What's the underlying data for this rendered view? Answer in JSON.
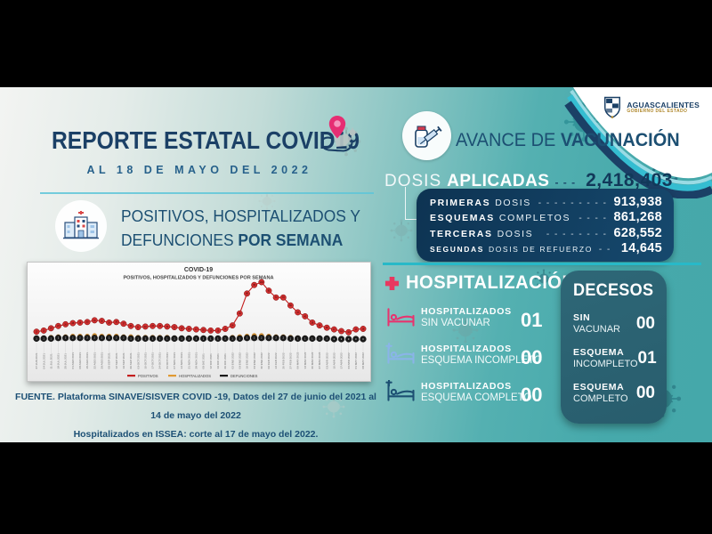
{
  "colors": {
    "background_bars": "#000000",
    "teal_background": "#46a9ab",
    "navy": "#1b4066",
    "navy_panel": "#0d3352",
    "cyan_divider": "#28b9c8",
    "pink_accent": "#e62e73",
    "decesos_panel": "#2b6273",
    "series_red": "#c41f1f",
    "series_orange": "#e09a33",
    "series_black": "#1a1a1a"
  },
  "brand": {
    "name": "AGUASCALIENTES",
    "tagline": "GOBIERNO DEL ESTADO"
  },
  "report": {
    "title": "REPORTE ESTATAL COVID19",
    "subtitle": "AL 18 DE MAYO DEL 2022",
    "section_line1": "POSITIVOS, HOSPITALIZADOS Y",
    "section_line2_regular": "DEFUNCIONES ",
    "section_line2_bold": "POR SEMANA"
  },
  "fuente": {
    "line1": "FUENTE. Plataforma SINAVE/SISVER COVID -19, Datos del 27 de junio del 2021 al 14 de mayo del 2022",
    "line2": "Hospitalizados en ISSEA: corte al 17 de mayo del 2022."
  },
  "vacunacion": {
    "title_regular": "AVANCE DE ",
    "title_bold": "VACUNACIÓN",
    "dosis_regular": "DOSIS",
    "dosis_bold": "APLICADAS",
    "dosis_dashes": "- - - - - - -",
    "dosis_total": "2,418,403",
    "rows": [
      {
        "label_bold": "PRIMERAS",
        "label_rest": "DOSIS",
        "dashes": "- - - - - - - - -",
        "value": "913,938"
      },
      {
        "label_bold": "ESQUEMAS",
        "label_rest": "COMPLETOS",
        "dashes": "- - - -",
        "value": "861,268"
      },
      {
        "label_bold": "TERCERAS",
        "label_rest": "DOSIS",
        "dashes": "- - - - - - - -",
        "value": "628,552"
      },
      {
        "label_bold": "SEGUNDAS",
        "label_rest": "DOSIS DE REFUERZO",
        "dashes": "- - -",
        "value": "14,645"
      }
    ]
  },
  "hospitalizacion": {
    "title": "HOSPITALIZACIÓN",
    "rows": [
      {
        "line1": "HOSPITALIZADOS",
        "line2": "SIN VACUNAR",
        "value": "01",
        "icon_color": "#e8336e"
      },
      {
        "line1": "HOSPITALIZADOS",
        "line2": "ESQUEMA INCOMPLETO",
        "value": "00",
        "icon_color": "#8ab4e8"
      },
      {
        "line1": "HOSPITALIZADOS",
        "line2": "ESQUEMA COMPLETO",
        "value": "00",
        "icon_color": "#1c4f72"
      }
    ]
  },
  "decesos": {
    "title": "DECESOS",
    "rows": [
      {
        "line1": "SIN",
        "line2": "VACUNAR",
        "value": "00"
      },
      {
        "line1": "ESQUEMA",
        "line2": "INCOMPLETO",
        "value": "01"
      },
      {
        "line1": "ESQUEMA",
        "line2": "COMPLETO",
        "value": "00"
      }
    ]
  },
  "chart_data": {
    "type": "line",
    "title": "COVID-19",
    "subtitle": "POSITIVOS, HOSPITALIZADOS Y DEFUNCIONES POR SEMANA",
    "x": [
      "27 JUN 2021",
      "04 JUL 2021",
      "11 JUL 2021",
      "18 JUL 2021",
      "25 JUL 2021",
      "01 AGO 2021",
      "08 AGO 2021",
      "15 AGO 2021",
      "22 AGO 2021",
      "29 AGO 2021",
      "05 SEP 2021",
      "12 SEP 2021",
      "19 SEP 2021",
      "26 SEP 2021",
      "03 OCT 2021",
      "10 OCT 2021",
      "17 OCT 2021",
      "24 OCT 2021",
      "31 OCT 2021",
      "07 NOV 2021",
      "14 NOV 2021",
      "21 NOV 2021",
      "28 NOV 2021",
      "05 DIC 2021",
      "12 DIC 2021",
      "19 DIC 2021",
      "26 DIC 2021",
      "02 ENE 2022",
      "09 ENE 2022",
      "16 ENE 2022",
      "23 ENE 2022",
      "30 ENE 2022",
      "06 FEB 2022",
      "13 FEB 2022",
      "20 FEB 2022",
      "27 FEB 2022",
      "06 MAR 2022",
      "13 MAR 2022",
      "20 MAR 2022",
      "27 MAR 2022",
      "03 ABR 2022",
      "10 ABR 2022",
      "17 ABR 2022",
      "24 ABR 2022",
      "01 MAY 2022",
      "08 MAY 2022"
    ],
    "series": [
      {
        "name": "POSITIVOS",
        "color": "#c41f1f",
        "values": [
          13,
          15,
          19,
          23,
          26,
          28,
          29,
          30,
          33,
          32,
          29,
          30,
          27,
          23,
          21,
          22,
          23,
          23,
          22,
          21,
          19,
          18,
          17,
          16,
          15,
          15,
          18,
          24,
          45,
          80,
          95,
          100,
          85,
          73,
          73,
          59,
          47,
          40,
          29,
          24,
          20,
          17,
          14,
          12,
          17,
          18
        ]
      },
      {
        "name": "HOSPITALIZADOS",
        "color": "#e09a33",
        "values": [
          2,
          2,
          3,
          4,
          4,
          5,
          5,
          5,
          6,
          5,
          5,
          5,
          4,
          4,
          3,
          3,
          3,
          3,
          3,
          2,
          2,
          2,
          2,
          2,
          2,
          2,
          2,
          3,
          4,
          5,
          6,
          6,
          5,
          4,
          4,
          3,
          2,
          2,
          2,
          1,
          1,
          1,
          1,
          1,
          1,
          1
        ]
      },
      {
        "name": "DEFUNCIONES",
        "color": "#1a1a1a",
        "values": [
          1,
          1,
          1,
          2,
          2,
          2,
          2,
          2,
          2,
          2,
          2,
          2,
          2,
          1,
          1,
          1,
          1,
          1,
          1,
          1,
          1,
          1,
          1,
          1,
          1,
          1,
          1,
          1,
          1,
          2,
          2,
          2,
          2,
          2,
          2,
          1,
          1,
          1,
          1,
          1,
          1,
          0,
          0,
          0,
          0,
          0
        ]
      }
    ],
    "xlabel": "",
    "ylabel": "",
    "ylim": [
      0,
      100
    ],
    "y_axis_visible": false,
    "y_scale": "relative height (axis labels not legible in source)",
    "grid": false,
    "legend_position": "bottom"
  }
}
